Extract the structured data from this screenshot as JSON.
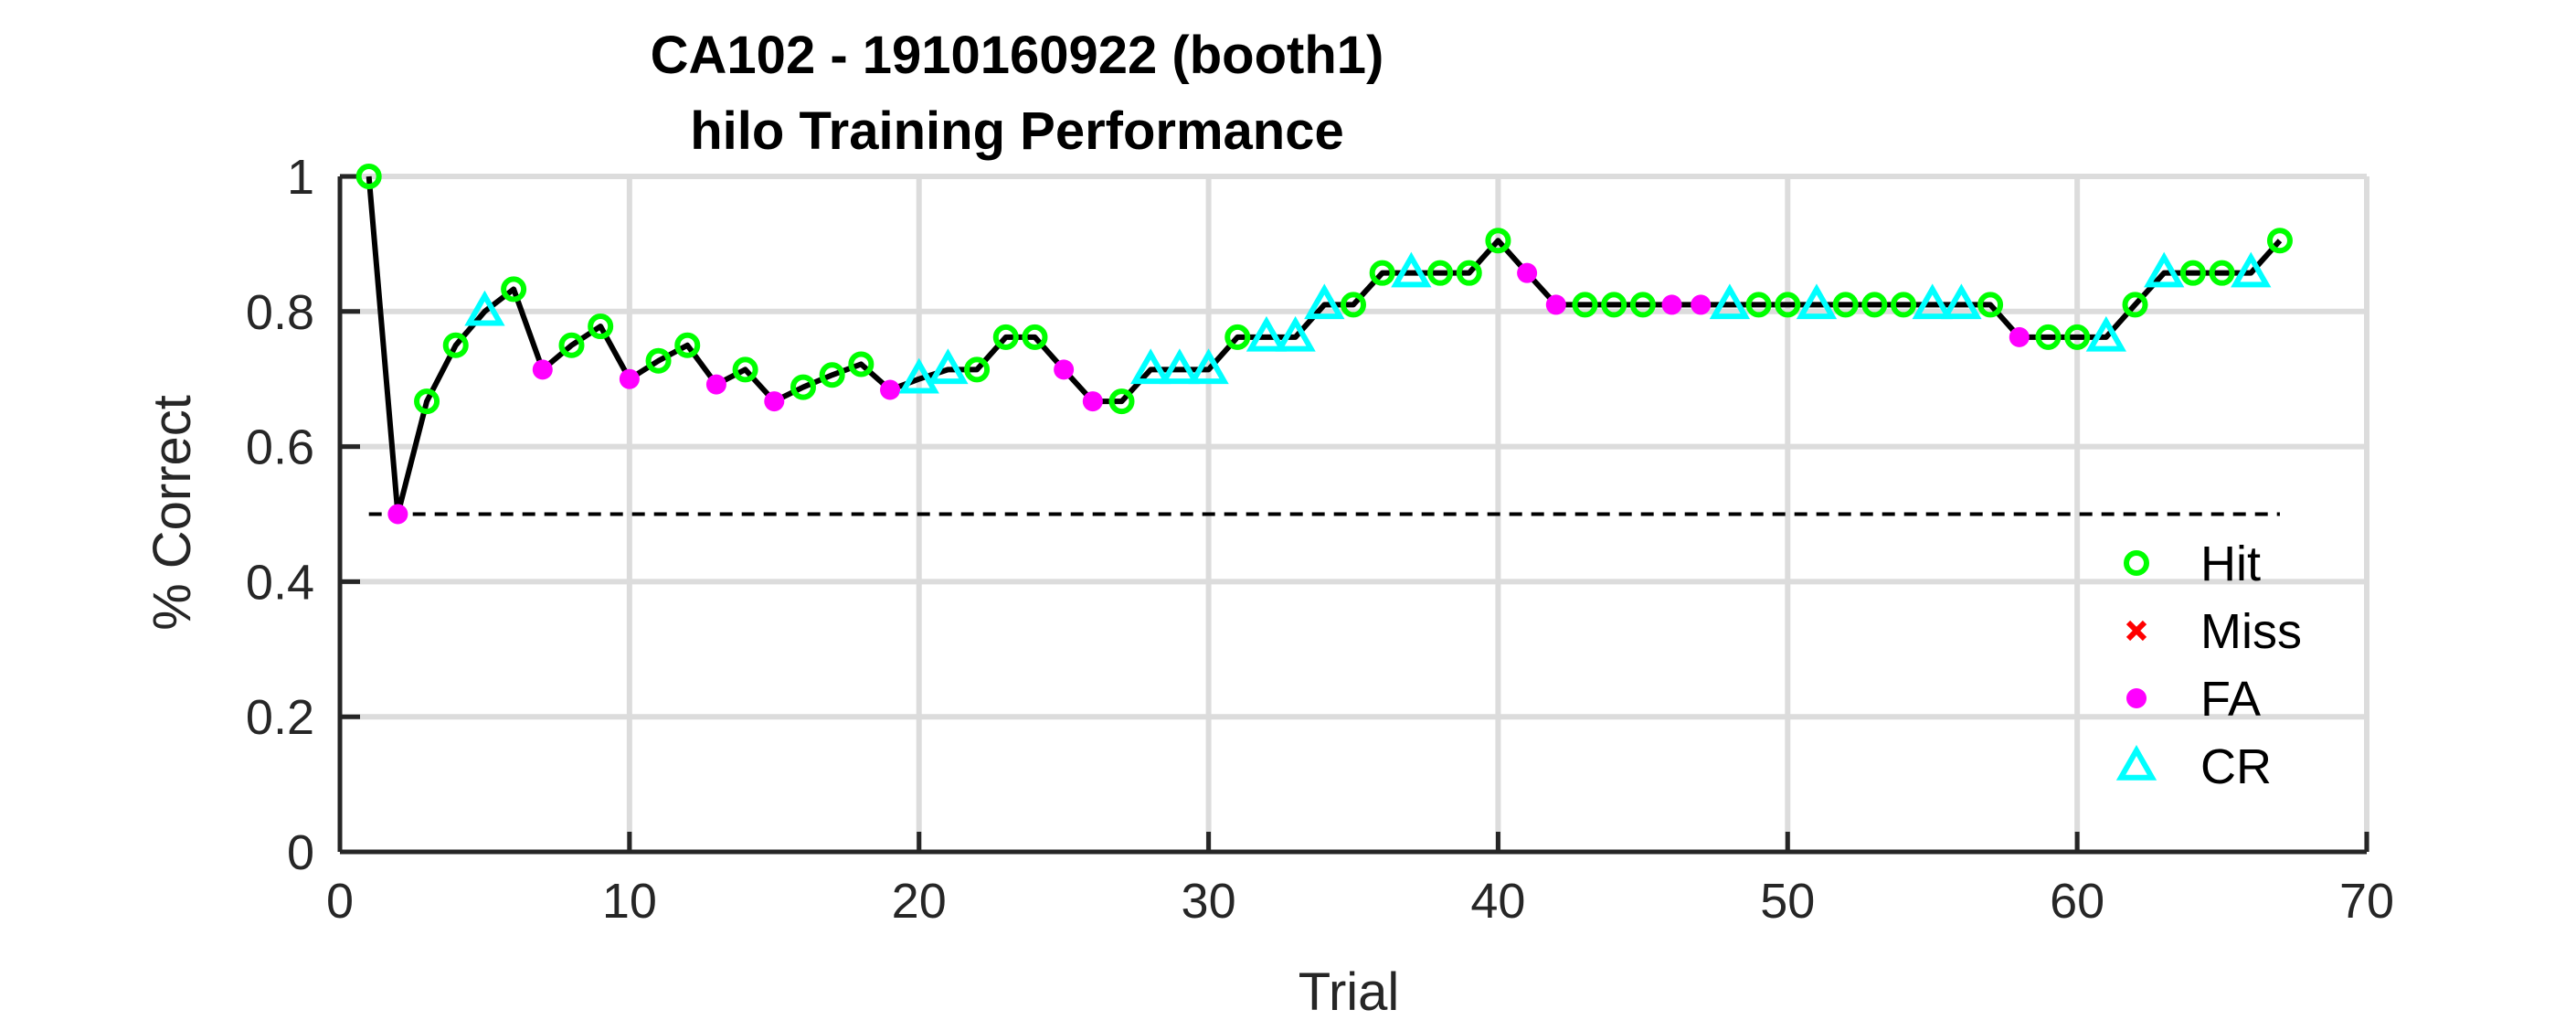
{
  "chart_data": {
    "type": "line",
    "title": "CA102 - 1910160922 (booth1)",
    "subtitle": "hilo Training Performance",
    "xlabel": "Trial",
    "ylabel": "% Correct",
    "xlim": [
      0,
      70
    ],
    "ylim": [
      0,
      1
    ],
    "xticks": [
      0,
      10,
      20,
      30,
      40,
      50,
      60,
      70
    ],
    "yticks": [
      0,
      0.2,
      0.4,
      0.6,
      0.8,
      1
    ],
    "xtick_labels": [
      "0",
      "10",
      "20",
      "30",
      "40",
      "50",
      "60",
      "70"
    ],
    "ytick_labels": [
      "0",
      "0.2",
      "0.4",
      "0.6",
      "0.8",
      "1"
    ],
    "grid": true,
    "legend_position": "lower-right",
    "chance_line": {
      "y": 0.5,
      "x_start": 1,
      "x_end": 67,
      "style": "dashed"
    },
    "legend": [
      {
        "name": "Hit",
        "marker": "open-circle",
        "color": "#00ff00"
      },
      {
        "name": "Miss",
        "marker": "x",
        "color": "#ff0000"
      },
      {
        "name": "FA",
        "marker": "filled-circle",
        "color": "#ff00ff"
      },
      {
        "name": "CR",
        "marker": "open-triangle",
        "color": "#00ffff"
      }
    ],
    "trials": [
      1,
      2,
      3,
      4,
      5,
      6,
      7,
      8,
      9,
      10,
      11,
      12,
      13,
      14,
      15,
      16,
      17,
      18,
      19,
      20,
      21,
      22,
      23,
      24,
      25,
      26,
      27,
      28,
      29,
      30,
      31,
      32,
      33,
      34,
      35,
      36,
      37,
      38,
      39,
      40,
      41,
      42,
      43,
      44,
      45,
      46,
      47,
      48,
      49,
      50,
      51,
      52,
      53,
      54,
      55,
      56,
      57,
      58,
      59,
      60,
      61,
      62,
      63,
      64,
      65,
      66,
      67
    ],
    "percent_correct": [
      1.0,
      0.5,
      0.667,
      0.75,
      0.8,
      0.833,
      0.714,
      0.75,
      0.778,
      0.7,
      0.727,
      0.75,
      0.692,
      0.714,
      0.667,
      0.688,
      0.706,
      0.722,
      0.684,
      0.7,
      0.714,
      0.714,
      0.762,
      0.762,
      0.714,
      0.667,
      0.667,
      0.714,
      0.714,
      0.714,
      0.762,
      0.762,
      0.762,
      0.81,
      0.81,
      0.857,
      0.857,
      0.857,
      0.857,
      0.905,
      0.857,
      0.81,
      0.81,
      0.81,
      0.81,
      0.81,
      0.81,
      0.81,
      0.81,
      0.81,
      0.81,
      0.81,
      0.81,
      0.81,
      0.81,
      0.81,
      0.81,
      0.762,
      0.762,
      0.762,
      0.762,
      0.81,
      0.857,
      0.857,
      0.857,
      0.857,
      0.905
    ],
    "outcomes": [
      "Hit",
      "FA",
      "Hit",
      "Hit",
      "CR",
      "Hit",
      "FA",
      "Hit",
      "Hit",
      "FA",
      "Hit",
      "Hit",
      "FA",
      "Hit",
      "FA",
      "Hit",
      "Hit",
      "Hit",
      "FA",
      "CR",
      "CR",
      "Hit",
      "Hit",
      "Hit",
      "FA",
      "FA",
      "Hit",
      "CR",
      "CR",
      "CR",
      "Hit",
      "CR",
      "CR",
      "CR",
      "Hit",
      "Hit",
      "CR",
      "Hit",
      "Hit",
      "Hit",
      "FA",
      "FA",
      "Hit",
      "Hit",
      "Hit",
      "FA",
      "FA",
      "CR",
      "Hit",
      "Hit",
      "CR",
      "Hit",
      "Hit",
      "Hit",
      "CR",
      "CR",
      "Hit",
      "FA",
      "Hit",
      "Hit",
      "CR",
      "Hit",
      "CR",
      "Hit",
      "Hit",
      "CR",
      "Hit"
    ]
  }
}
